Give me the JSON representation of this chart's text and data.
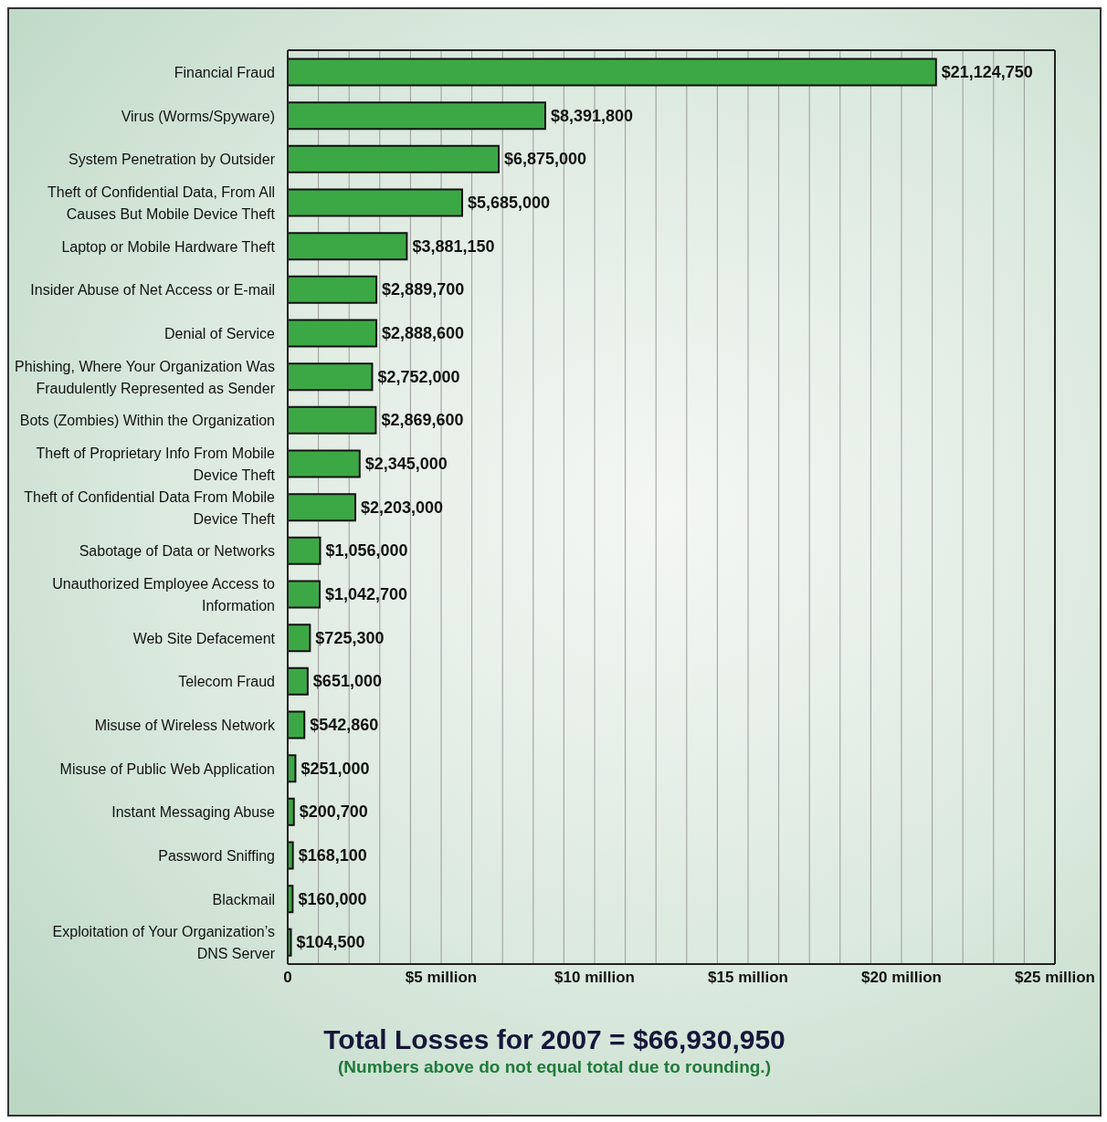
{
  "chart_data": {
    "type": "bar",
    "orientation": "horizontal",
    "title": "Total Losses for 2007 = $66,930,950",
    "annotations": [
      "(Numbers above do not equal total due to rounding.)"
    ],
    "categories": [
      "Financial Fraud",
      "Virus (Worms/Spyware)",
      "System Penetration by Outsider",
      "Theft of Confidential Data, From All Causes But Mobile Device Theft",
      "Laptop or Mobile Hardware Theft",
      "Insider Abuse of Net Access or E-mail",
      "Denial of Service",
      "Phishing, Where Your Organization Was Fraudulently Represented as Sender",
      "Bots (Zombies) Within the Organization",
      "Theft of Proprietary Info From Mobile Device Theft",
      "Theft of Confidential Data From Mobile Device Theft",
      "Sabotage of Data or Networks",
      "Unauthorized Employee Access to Information",
      "Web Site Defacement",
      "Telecom Fraud",
      "Misuse of Wireless Network",
      "Misuse of Public Web Application",
      "Instant Messaging Abuse",
      "Password Sniffing",
      "Blackmail",
      "Exploitation of Your Organization’s DNS Server"
    ],
    "values": [
      21124750,
      8391800,
      6875000,
      5685000,
      3881150,
      2889700,
      2888600,
      2752000,
      2869600,
      2345000,
      2203000,
      1056000,
      1042700,
      725300,
      651000,
      542860,
      251000,
      200700,
      168100,
      160000,
      104500
    ],
    "value_labels": [
      "$21,124,750",
      "$8,391,800",
      "$6,875,000",
      "$5,685,000",
      "$3,881,150",
      "$2,889,700",
      "$2,888,600",
      "$2,752,000",
      "$2,869,600",
      "$2,345,000",
      "$2,203,000",
      "$1,056,000",
      "$1,042,700",
      "$725,300",
      "$651,000",
      "$542,860",
      "$251,000",
      "$200,700",
      "$168,100",
      "$160,000",
      "$104,500"
    ],
    "color": "#3ca845",
    "xlim": [
      0,
      25000000
    ],
    "xticks": [
      0,
      {
        "value": 1000000,
        "label": null
      },
      {
        "value": 2000000,
        "label": null
      },
      {
        "value": 3000000,
        "label": null
      },
      {
        "value": 4000000,
        "label": null
      },
      {
        "value": 5000000,
        "label": "$5 million"
      },
      {
        "value": 6000000,
        "label": null
      },
      {
        "value": 7000000,
        "label": null
      },
      {
        "value": 8000000,
        "label": null
      },
      {
        "value": 9000000,
        "label": null
      },
      {
        "value": 10000000,
        "label": "$10 million"
      },
      {
        "value": 11000000,
        "label": null
      },
      {
        "value": 12000000,
        "label": null
      },
      {
        "value": 13000000,
        "label": null
      },
      {
        "value": 14000000,
        "label": null
      },
      {
        "value": 15000000,
        "label": "$15 million"
      },
      {
        "value": 16000000,
        "label": null
      },
      {
        "value": 17000000,
        "label": null
      },
      {
        "value": 18000000,
        "label": null
      },
      {
        "value": 19000000,
        "label": null
      },
      {
        "value": 20000000,
        "label": "$20 million"
      },
      {
        "value": 21000000,
        "label": null
      },
      {
        "value": 22000000,
        "label": null
      },
      {
        "value": 23000000,
        "label": null
      },
      {
        "value": 24000000,
        "label": null
      },
      {
        "value": 25000000,
        "label": "$25 million"
      }
    ],
    "grid": "x",
    "legend": false
  }
}
